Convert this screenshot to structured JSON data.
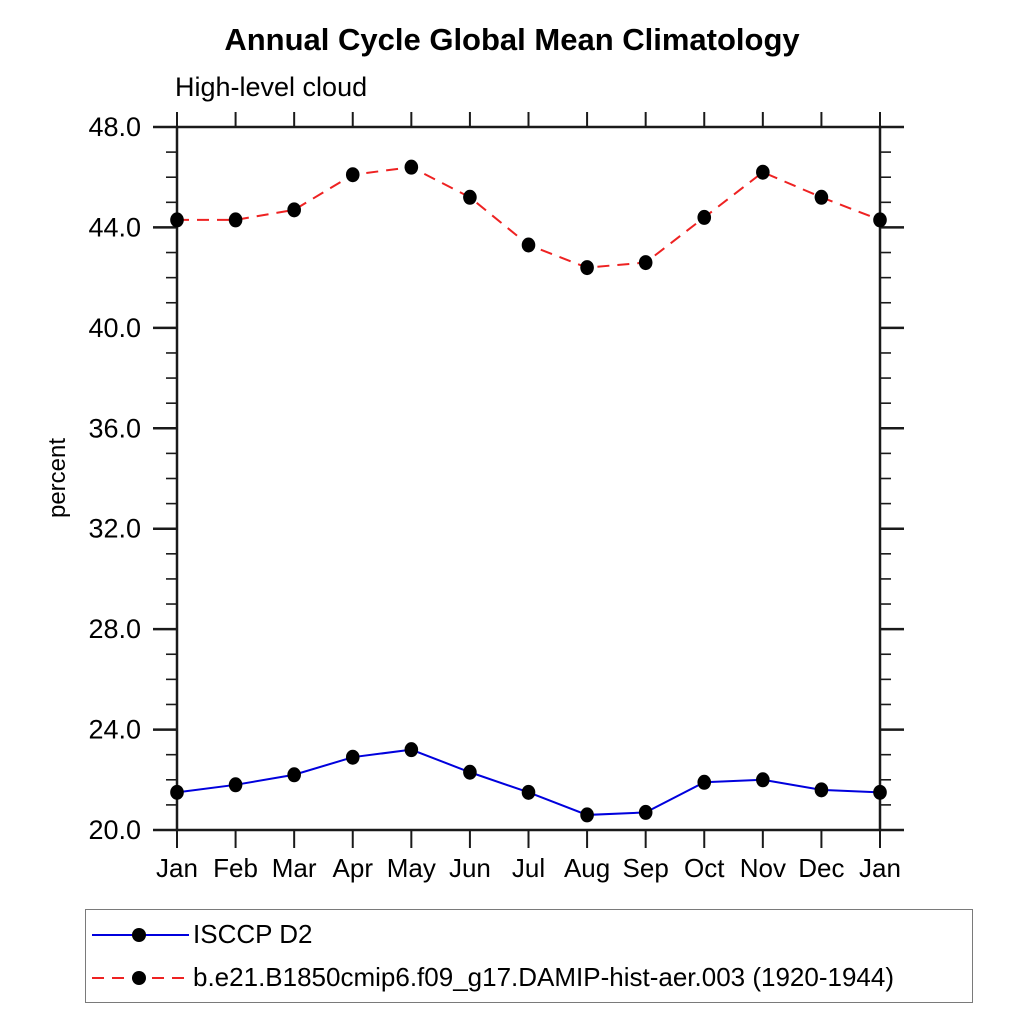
{
  "page": {
    "background": "#ffffff"
  },
  "chart_data": {
    "type": "line",
    "title": "Annual Cycle Global Mean Climatology",
    "subtitle": "High-level cloud",
    "ylabel": "percent",
    "x_categories": [
      "Jan",
      "Feb",
      "Mar",
      "Apr",
      "May",
      "Jun",
      "Jul",
      "Aug",
      "Sep",
      "Oct",
      "Nov",
      "Dec",
      "Jan"
    ],
    "ylim": [
      20.0,
      48.0
    ],
    "ytick_major": [
      20,
      24,
      28,
      32,
      36,
      40,
      44,
      48
    ],
    "ytick_labels": [
      "20.0",
      "24.0",
      "28.0",
      "32.0",
      "36.0",
      "40.0",
      "44.0",
      "48.0"
    ],
    "ytick_minor_interval": 1.0,
    "grid": false,
    "frame": "box-with-outward-ticks",
    "legend_position": "bottom-left",
    "axis_color": "#1a1a1a",
    "marker": "filled-circle",
    "marker_color": "#000000",
    "series": [
      {
        "name": "ISCCP D2",
        "color": "#0000dd",
        "line_style": "solid",
        "values": [
          21.5,
          21.8,
          22.2,
          22.9,
          23.2,
          22.3,
          21.5,
          20.6,
          20.7,
          21.9,
          22.0,
          21.6,
          21.5
        ]
      },
      {
        "name": "b.e21.B1850cmip6.f09_g17.DAMIP-hist-aer.003 (1920-1944)",
        "color": "#ee2222",
        "line_style": "dashed",
        "values": [
          44.3,
          44.3,
          44.7,
          46.1,
          46.4,
          45.2,
          43.3,
          42.4,
          42.6,
          44.4,
          46.2,
          45.2,
          44.3
        ]
      }
    ]
  }
}
